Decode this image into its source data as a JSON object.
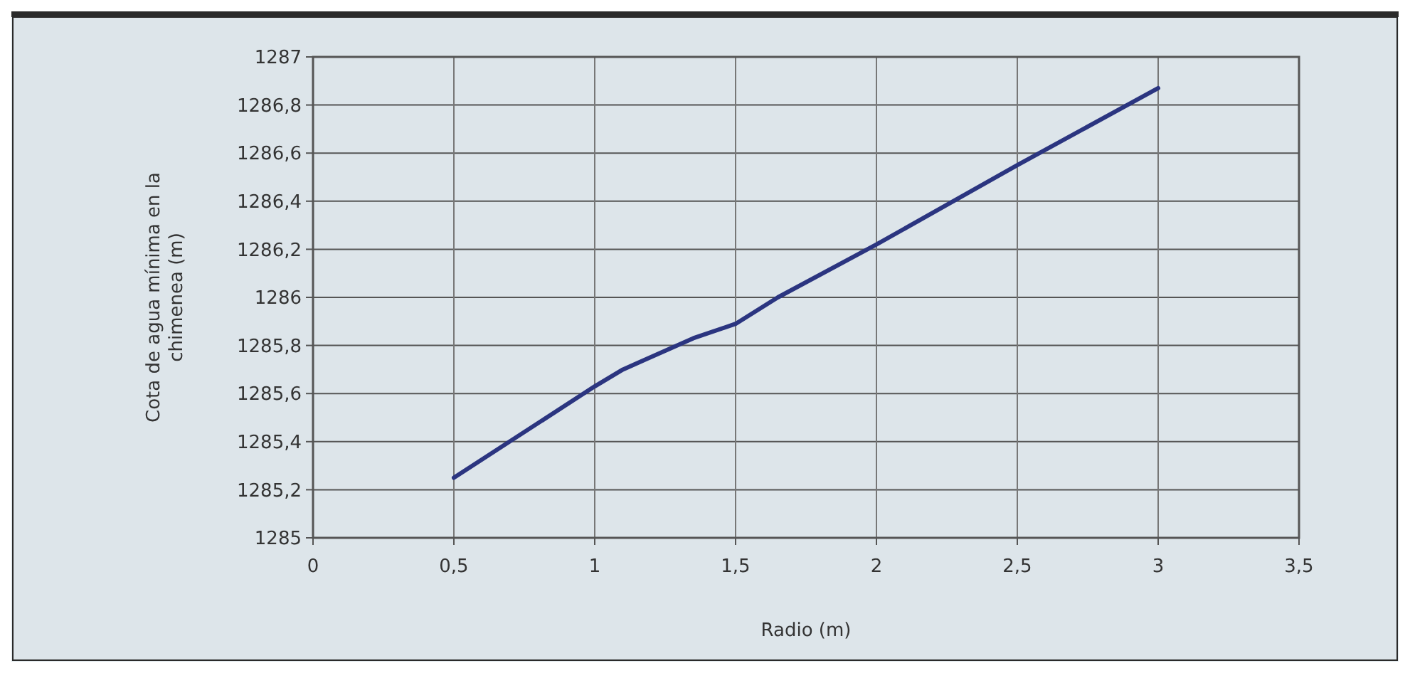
{
  "chart_data": {
    "type": "line",
    "xlabel": "Radio (m)",
    "ylabel": "Cota de agua mínima en la chimenea (m)",
    "x": [
      0.5,
      1,
      1.1,
      1.35,
      1.5,
      1.65,
      2,
      2.5,
      3
    ],
    "series": [
      {
        "color": "#2b3580",
        "values": [
          1285.25,
          1285.63,
          1285.7,
          1285.83,
          1285.89,
          1286.0,
          1286.22,
          1286.55,
          1286.87
        ]
      }
    ],
    "xlim": [
      0,
      3.5
    ],
    "xticks": [
      0,
      {
        "value": 0.5,
        "label": "0,5"
      },
      1,
      {
        "value": 1.5,
        "label": "1,5"
      },
      2,
      {
        "value": 2.5,
        "label": "2,5"
      },
      3,
      {
        "value": 3.5,
        "label": "3,5"
      }
    ],
    "ylim": [
      1285,
      1287
    ],
    "yticks": [
      1285,
      {
        "value": 1285.2,
        "label": "1285,2"
      },
      {
        "value": 1285.4,
        "label": "1285,4"
      },
      {
        "value": 1285.6,
        "label": "1285,6"
      },
      {
        "value": 1285.8,
        "label": "1285,8"
      },
      1286,
      {
        "value": 1286.2,
        "label": "1286,2"
      },
      {
        "value": 1286.4,
        "label": "1286,4"
      },
      {
        "value": 1286.6,
        "label": "1286,6"
      },
      {
        "value": 1286.8,
        "label": "1286,8"
      },
      1287
    ],
    "grid": true,
    "marker": "none",
    "line_style": "solid"
  }
}
